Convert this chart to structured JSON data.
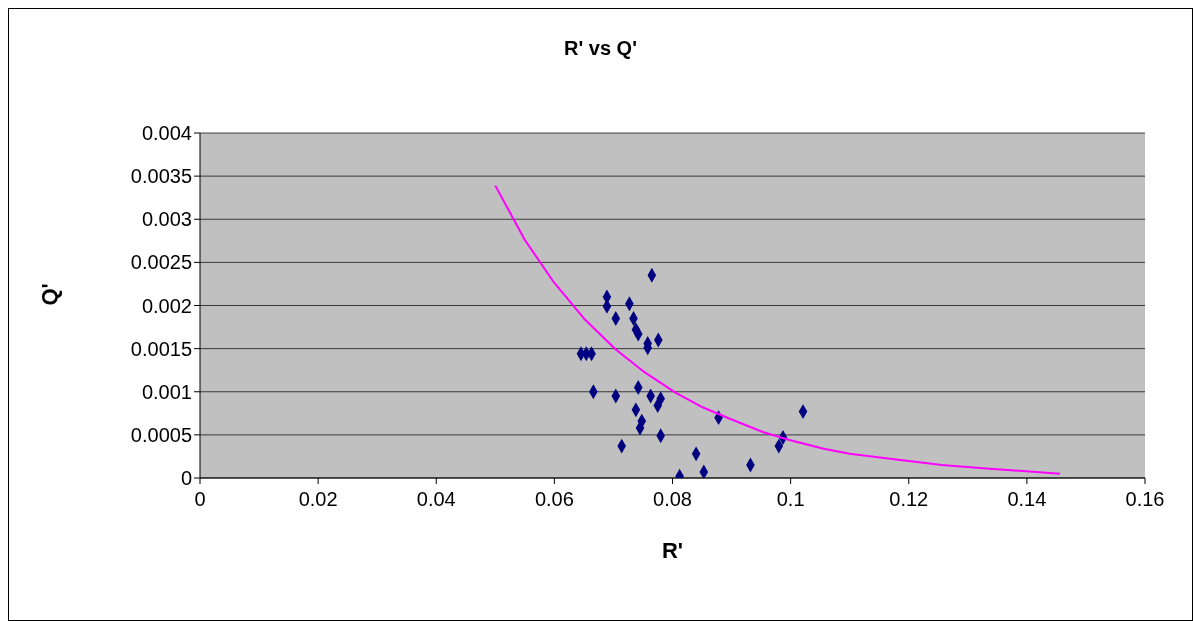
{
  "chart_data": {
    "type": "scatter",
    "title": "R' vs Q'",
    "xlabel": "R'",
    "ylabel": "Q'",
    "xlim": [
      0,
      0.16
    ],
    "xticks": [
      0,
      0.02,
      0.04,
      0.06,
      0.08,
      0.1,
      0.12,
      0.14,
      0.16
    ],
    "ylim": [
      0,
      0.004
    ],
    "yticks": [
      0,
      0.0005,
      0.001,
      0.0015,
      0.002,
      0.0025,
      0.003,
      0.0035,
      0.004
    ],
    "grid": "y",
    "series": [
      {
        "marker": "diamond",
        "color": "#000080",
        "x": [
          0.0765,
          0.0689,
          0.0689,
          0.0727,
          0.0704,
          0.0734,
          0.0738,
          0.0742,
          0.0758,
          0.0758,
          0.0776,
          0.0645,
          0.0654,
          0.0663,
          0.0666,
          0.0704,
          0.0742,
          0.0763,
          0.078,
          0.0775,
          0.0738,
          0.0748,
          0.0745,
          0.078,
          0.0714,
          0.0878,
          0.1021,
          0.0987,
          0.098,
          0.084,
          0.0853,
          0.0812,
          0.0932
        ],
        "values": [
          0.00235,
          0.0021,
          0.00199,
          0.00202,
          0.00185,
          0.00185,
          0.00172,
          0.00167,
          0.00156,
          0.00151,
          0.0016,
          0.00144,
          0.00144,
          0.00144,
          0.001,
          0.00095,
          0.00105,
          0.00095,
          0.00092,
          0.00084,
          0.00079,
          0.00066,
          0.00058,
          0.00049,
          0.00037,
          0.0007,
          0.00077,
          0.00047,
          0.00037,
          0.00028,
          7e-05,
          2e-05,
          0.00015
        ]
      },
      {
        "type": "line",
        "marker": "none",
        "color": "#ff00ff",
        "x": [
          0.05,
          0.055,
          0.0575,
          0.0599,
          0.065,
          0.0704,
          0.075,
          0.0805,
          0.0851,
          0.0896,
          0.0954,
          0.0998,
          0.1056,
          0.11,
          0.1172,
          0.1256,
          0.1332,
          0.1456
        ],
        "values": [
          0.00339,
          0.00276,
          0.00251,
          0.00227,
          0.00185,
          0.00149,
          0.00124,
          0.00099,
          0.00082,
          0.00069,
          0.00053,
          0.00044,
          0.00034,
          0.00028,
          0.00022,
          0.00015,
          0.00011,
          5e-05
        ]
      }
    ]
  }
}
